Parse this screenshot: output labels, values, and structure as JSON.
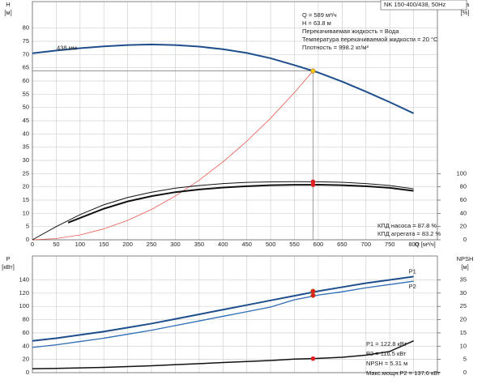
{
  "chart_data": [
    {
      "type": "line",
      "model": "NK 150-400/438, 50Hz",
      "info_lines": [
        "Q = 589 м³/ч",
        "H = 63.8 м",
        "Перекачиваемая жидкость = Вода",
        "Температура перекачиваемой жидкости = 20 °C",
        "Плотность = 998.2 кг/м³"
      ],
      "efficiency_lines": [
        "КПД насоса = 87.8 %",
        "КПД агрегата = 83.2 %"
      ],
      "ylabel": "H",
      "yunit": "[м]",
      "y2label": "eta",
      "y2unit": "[%]",
      "xlabel": "Q [м³/ч]",
      "xlim": [
        0,
        850
      ],
      "xticks": [
        0,
        50,
        100,
        150,
        200,
        250,
        300,
        350,
        400,
        450,
        500,
        550,
        600,
        650,
        700,
        750,
        800
      ],
      "ylim": [
        0,
        90
      ],
      "yticks": [
        0,
        5,
        10,
        15,
        20,
        25,
        30,
        35,
        40,
        45,
        50,
        55,
        60,
        65,
        70,
        75,
        80
      ],
      "y2lim": [
        0,
        360
      ],
      "y2ticks": [
        0,
        20,
        40,
        60,
        80,
        100
      ],
      "grid": true,
      "series": [
        {
          "name": "438 мм",
          "color": "#1f4e8c",
          "width": 2,
          "x": [
            0,
            50,
            100,
            150,
            200,
            250,
            300,
            350,
            400,
            450,
            500,
            550,
            600,
            650,
            700,
            750,
            800
          ],
          "values": [
            70.5,
            71.5,
            72.4,
            73.1,
            73.6,
            73.8,
            73.6,
            73.0,
            72.0,
            70.6,
            68.6,
            66.0,
            63.2,
            59.8,
            56.0,
            52.0,
            47.8
          ]
        },
        {
          "color": "#e8584f",
          "width": 0.8,
          "x": [
            0,
            50,
            100,
            150,
            200,
            250,
            300,
            350,
            400,
            450,
            500,
            550,
            589
          ],
          "values": [
            0,
            0.46,
            1.84,
            4.14,
            7.36,
            11.49,
            16.55,
            22.53,
            29.43,
            37.24,
            45.98,
            55.63,
            63.8
          ]
        },
        {
          "color": "#111111",
          "width": 1,
          "axis": "y2",
          "x": [
            0,
            50,
            100,
            150,
            200,
            250,
            300,
            350,
            400,
            450,
            500,
            550,
            600,
            650,
            700,
            750,
            800
          ],
          "values": [
            0,
            20,
            38,
            53,
            64,
            72,
            78,
            82,
            85,
            86.8,
            87.6,
            87.8,
            87.7,
            87,
            85,
            82,
            77
          ]
        },
        {
          "color": "#111111",
          "width": 2,
          "axis": "y2",
          "x": [
            75,
            100,
            150,
            200,
            250,
            300,
            350,
            400,
            450,
            500,
            550,
            600,
            650,
            700,
            750,
            800
          ],
          "values": [
            26,
            33,
            47,
            58,
            66,
            72,
            76,
            79,
            81,
            82.5,
            83.1,
            83.2,
            82.5,
            81,
            78.5,
            74
          ]
        }
      ],
      "markers": [
        {
          "x": 589,
          "y": 63.8,
          "color": "#f5c518"
        },
        {
          "x": 589,
          "y": 87.8,
          "axis": "y2",
          "color": "#e02020"
        },
        {
          "x": 589,
          "y": 83.2,
          "axis": "y2",
          "color": "#e02020"
        }
      ]
    },
    {
      "type": "line",
      "power_lines": [
        "P1 = 122.8 кВт",
        "P2 = 116.5 кВт",
        "NPSH = 5.31 м",
        "Макс.мощн.P2 = 137.6 кВт"
      ],
      "ylabel": "P",
      "yunit": "[кВт]",
      "y2label": "NPSH",
      "y2unit": "[м]",
      "xlim": [
        0,
        850
      ],
      "xticks": [
        0,
        50,
        100,
        150,
        200,
        250,
        300,
        350,
        400,
        450,
        500,
        550,
        600,
        650,
        700,
        750,
        800
      ],
      "xtick_labels": false,
      "ylim": [
        0,
        176
      ],
      "yticks": [
        0,
        20,
        40,
        60,
        80,
        100,
        120,
        140
      ],
      "y2lim": [
        0,
        44
      ],
      "y2ticks": [
        0,
        5,
        10,
        15,
        20,
        25,
        30,
        35
      ],
      "grid": true,
      "series": [
        {
          "name": "P1",
          "color": "#1f4e8c",
          "width": 2,
          "x": [
            0,
            50,
            100,
            150,
            200,
            250,
            300,
            350,
            400,
            450,
            500,
            550,
            600,
            650,
            700,
            750,
            800
          ],
          "values": [
            48,
            52,
            57,
            62,
            68,
            74,
            81,
            88,
            95,
            102,
            109,
            116,
            123,
            129,
            135,
            140,
            145
          ]
        },
        {
          "name": "P2",
          "color": "#2f6db5",
          "width": 1.3,
          "x": [
            0,
            50,
            100,
            150,
            200,
            250,
            300,
            350,
            400,
            450,
            500,
            550,
            600,
            650,
            700,
            750,
            800
          ],
          "values": [
            38,
            42,
            47,
            52,
            58,
            64,
            71,
            78,
            85,
            92,
            99,
            110,
            117,
            122,
            128,
            133,
            138
          ]
        },
        {
          "color": "#111111",
          "width": 1.5,
          "axis": "y2",
          "x": [
            0,
            50,
            100,
            150,
            200,
            250,
            300,
            350,
            400,
            450,
            500,
            550,
            600,
            650,
            700,
            750,
            800
          ],
          "values": [
            1.5,
            1.6,
            1.8,
            2.0,
            2.3,
            2.6,
            3.0,
            3.4,
            3.8,
            4.2,
            4.6,
            5.1,
            5.4,
            5.8,
            6.6,
            8.0,
            12
          ]
        }
      ],
      "markers": [
        {
          "x": 589,
          "y": 122.8,
          "color": "#e02020"
        },
        {
          "x": 589,
          "y": 116.5,
          "color": "#e02020"
        },
        {
          "x": 589,
          "y": 5.31,
          "axis": "y2",
          "color": "#e02020"
        }
      ]
    }
  ]
}
